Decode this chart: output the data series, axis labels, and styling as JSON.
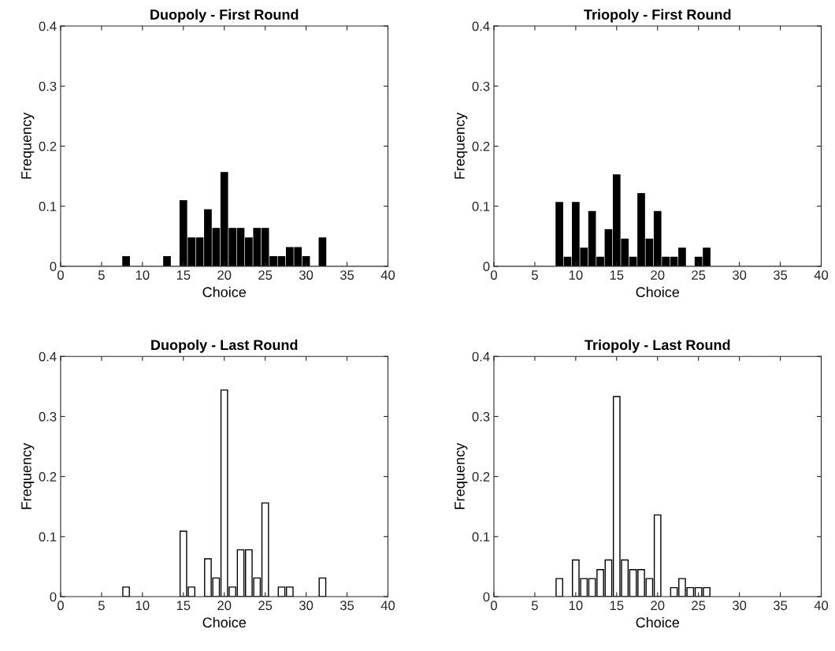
{
  "chart_data": [
    {
      "type": "bar",
      "title": "Duopoly - First Round",
      "xlabel": "Choice",
      "ylabel": "Frequency",
      "x": [
        8,
        13,
        15,
        16,
        17,
        18,
        19,
        20,
        21,
        22,
        23,
        24,
        25,
        26,
        27,
        28,
        29,
        30,
        32
      ],
      "values": [
        0.016,
        0.016,
        0.109,
        0.047,
        0.047,
        0.094,
        0.063,
        0.156,
        0.063,
        0.063,
        0.047,
        0.063,
        0.063,
        0.016,
        0.016,
        0.031,
        0.031,
        0.016,
        0.047
      ],
      "color": "#000000",
      "xlim": [
        0,
        40
      ],
      "xticks": [
        0,
        5,
        10,
        15,
        20,
        25,
        30,
        35,
        40
      ],
      "ylim": [
        0,
        0.4
      ],
      "yticks": [
        0,
        0.1,
        0.2,
        0.3,
        0.4
      ],
      "grid": false
    },
    {
      "type": "bar",
      "title": "Triopoly - First Round",
      "xlabel": "Choice",
      "ylabel": "Frequency",
      "x": [
        8,
        9,
        10,
        11,
        12,
        13,
        14,
        15,
        16,
        17,
        18,
        19,
        20,
        21,
        22,
        23,
        25,
        26
      ],
      "values": [
        0.106,
        0.015,
        0.106,
        0.03,
        0.091,
        0.015,
        0.061,
        0.152,
        0.045,
        0.015,
        0.121,
        0.045,
        0.091,
        0.015,
        0.015,
        0.03,
        0.015,
        0.03
      ],
      "color": "#000000",
      "xlim": [
        0,
        40
      ],
      "xticks": [
        0,
        5,
        10,
        15,
        20,
        25,
        30,
        35,
        40
      ],
      "ylim": [
        0,
        0.4
      ],
      "yticks": [
        0,
        0.1,
        0.2,
        0.3,
        0.4
      ],
      "grid": false
    },
    {
      "type": "bar",
      "title": "Duopoly - Last Round",
      "xlabel": "Choice",
      "ylabel": "Frequency",
      "x": [
        8,
        15,
        16,
        18,
        19,
        20,
        21,
        22,
        23,
        24,
        25,
        27,
        28,
        32
      ],
      "values": [
        0.016,
        0.109,
        0.016,
        0.063,
        0.031,
        0.344,
        0.016,
        0.078,
        0.078,
        0.031,
        0.156,
        0.016,
        0.016,
        0.031
      ],
      "color": "#ffffff",
      "xlim": [
        0,
        40
      ],
      "xticks": [
        0,
        5,
        10,
        15,
        20,
        25,
        30,
        35,
        40
      ],
      "ylim": [
        0,
        0.4
      ],
      "yticks": [
        0,
        0.1,
        0.2,
        0.3,
        0.4
      ],
      "grid": false
    },
    {
      "type": "bar",
      "title": "Triopoly - Last Round",
      "xlabel": "Choice",
      "ylabel": "Frequency",
      "x": [
        8,
        10,
        11,
        12,
        13,
        14,
        15,
        16,
        17,
        18,
        19,
        20,
        22,
        23,
        24,
        25,
        26
      ],
      "values": [
        0.03,
        0.061,
        0.03,
        0.03,
        0.045,
        0.061,
        0.333,
        0.061,
        0.045,
        0.045,
        0.03,
        0.136,
        0.015,
        0.03,
        0.015,
        0.015,
        0.015
      ],
      "color": "#ffffff",
      "xlim": [
        0,
        40
      ],
      "xticks": [
        0,
        5,
        10,
        15,
        20,
        25,
        30,
        35,
        40
      ],
      "ylim": [
        0,
        0.4
      ],
      "yticks": [
        0,
        0.1,
        0.2,
        0.3,
        0.4
      ],
      "grid": false
    }
  ]
}
